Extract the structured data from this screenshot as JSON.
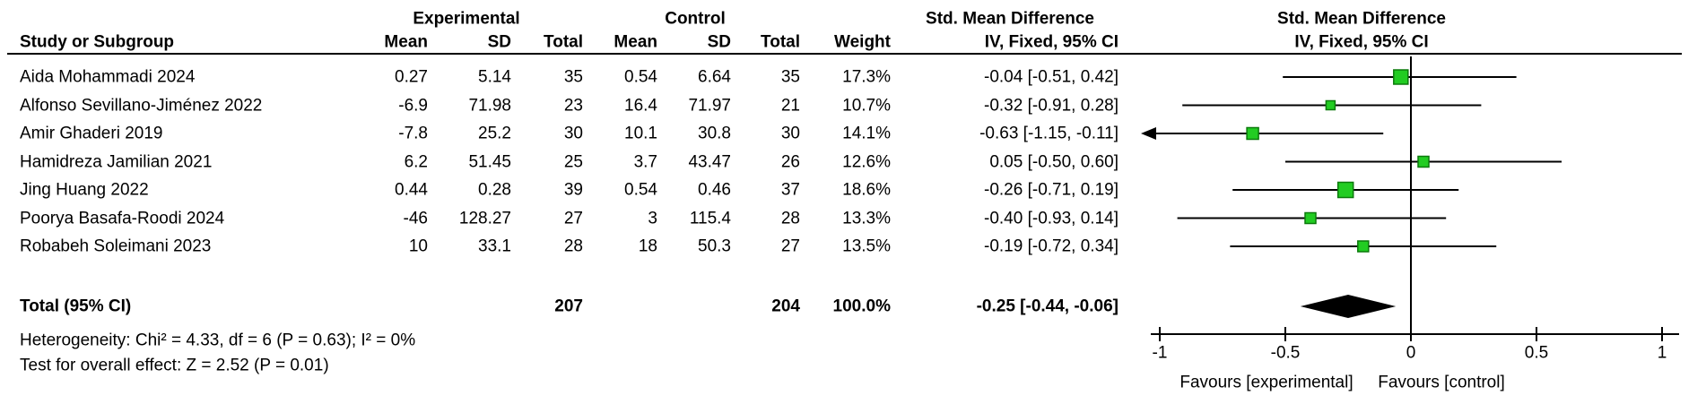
{
  "group_headers": {
    "experimental": "Experimental",
    "control": "Control",
    "smd": "Std. Mean Difference",
    "method_ci": "IV, Fixed, 95% CI"
  },
  "columns": {
    "study": "Study or Subgroup",
    "mean": "Mean",
    "sd": "SD",
    "total": "Total",
    "weight": "Weight"
  },
  "studies": [
    {
      "name": "Aida Mohammadi 2024",
      "mean_e": "0.27",
      "sd_e": "5.14",
      "n_e": "35",
      "mean_c": "0.54",
      "sd_c": "6.64",
      "n_c": "35",
      "weight": "17.3%",
      "ci": "-0.04 [-0.51, 0.42]",
      "est": -0.04,
      "lo": -0.51,
      "hi": 0.42,
      "weight_pct": 17.3
    },
    {
      "name": "Alfonso Sevillano-Jiménez 2022",
      "mean_e": "-6.9",
      "sd_e": "71.98",
      "n_e": "23",
      "mean_c": "16.4",
      "sd_c": "71.97",
      "n_c": "21",
      "weight": "10.7%",
      "ci": "-0.32 [-0.91, 0.28]",
      "est": -0.32,
      "lo": -0.91,
      "hi": 0.28,
      "weight_pct": 10.7
    },
    {
      "name": "Amir Ghaderi 2019",
      "mean_e": "-7.8",
      "sd_e": "25.2",
      "n_e": "30",
      "mean_c": "10.1",
      "sd_c": "30.8",
      "n_c": "30",
      "weight": "14.1%",
      "ci": "-0.63 [-1.15, -0.11]",
      "est": -0.63,
      "lo": -1.15,
      "hi": -0.11,
      "weight_pct": 14.1
    },
    {
      "name": "Hamidreza Jamilian 2021",
      "mean_e": "6.2",
      "sd_e": "51.45",
      "n_e": "25",
      "mean_c": "3.7",
      "sd_c": "43.47",
      "n_c": "26",
      "weight": "12.6%",
      "ci": "0.05 [-0.50, 0.60]",
      "est": 0.05,
      "lo": -0.5,
      "hi": 0.6,
      "weight_pct": 12.6
    },
    {
      "name": "Jing Huang 2022",
      "mean_e": "0.44",
      "sd_e": "0.28",
      "n_e": "39",
      "mean_c": "0.54",
      "sd_c": "0.46",
      "n_c": "37",
      "weight": "18.6%",
      "ci": "-0.26 [-0.71, 0.19]",
      "est": -0.26,
      "lo": -0.71,
      "hi": 0.19,
      "weight_pct": 18.6
    },
    {
      "name": "Poorya Basafa-Roodi 2024",
      "mean_e": "-46",
      "sd_e": "128.27",
      "n_e": "27",
      "mean_c": "3",
      "sd_c": "115.4",
      "n_c": "28",
      "weight": "13.3%",
      "ci": "-0.40 [-0.93, 0.14]",
      "est": -0.4,
      "lo": -0.93,
      "hi": 0.14,
      "weight_pct": 13.3
    },
    {
      "name": "Robabeh Soleimani 2023",
      "mean_e": "10",
      "sd_e": "33.1",
      "n_e": "28",
      "mean_c": "18",
      "sd_c": "50.3",
      "n_c": "27",
      "weight": "13.5%",
      "ci": "-0.19 [-0.72, 0.34]",
      "est": -0.19,
      "lo": -0.72,
      "hi": 0.34,
      "weight_pct": 13.5
    }
  ],
  "total": {
    "label": "Total (95% CI)",
    "n_e": "207",
    "n_c": "204",
    "weight": "100.0%",
    "ci": "-0.25 [-0.44, -0.06]",
    "est": -0.25,
    "lo": -0.44,
    "hi": -0.06
  },
  "footnotes": {
    "heterogeneity": "Heterogeneity: Chi² = 4.33, df = 6 (P = 0.63); I² = 0%",
    "overall": "Test for overall effect: Z = 2.52 (P = 0.01)"
  },
  "axis": {
    "ticks": [
      {
        "v": -1,
        "label": "-1"
      },
      {
        "v": -0.5,
        "label": "-0.5"
      },
      {
        "v": 0,
        "label": "0"
      },
      {
        "v": 0.5,
        "label": "0.5"
      },
      {
        "v": 1,
        "label": "1"
      }
    ],
    "favours_left": "Favours [experimental]",
    "favours_right": "Favours [control]"
  },
  "colors": {
    "marker_fill": "#22cc22",
    "marker_border": "#0b7a0b",
    "diamond": "#000000",
    "line": "#000000"
  },
  "chart_data": {
    "type": "scatter",
    "variant": "forest-plot-meta-analysis",
    "title": "Std. Mean Difference",
    "subtitle": "IV, Fixed, 95% CI",
    "xlim": [
      -1,
      1
    ],
    "x_ticks": [
      -1,
      -0.5,
      0,
      0.5,
      1
    ],
    "xlabel_left": "Favours [experimental]",
    "xlabel_right": "Favours [control]",
    "grid": false,
    "studies": [
      {
        "name": "Aida Mohammadi 2024",
        "est": -0.04,
        "ci": [
          -0.51,
          0.42
        ],
        "weight_pct": 17.3
      },
      {
        "name": "Alfonso Sevillano-Jiménez 2022",
        "est": -0.32,
        "ci": [
          -0.91,
          0.28
        ],
        "weight_pct": 10.7
      },
      {
        "name": "Amir Ghaderi 2019",
        "est": -0.63,
        "ci": [
          -1.15,
          -0.11
        ],
        "weight_pct": 14.1,
        "ci_clipped_left": true
      },
      {
        "name": "Hamidreza Jamilian 2021",
        "est": 0.05,
        "ci": [
          -0.5,
          0.6
        ],
        "weight_pct": 12.6
      },
      {
        "name": "Jing Huang 2022",
        "est": -0.26,
        "ci": [
          -0.71,
          0.19
        ],
        "weight_pct": 18.6
      },
      {
        "name": "Poorya Basafa-Roodi 2024",
        "est": -0.4,
        "ci": [
          -0.93,
          0.14
        ],
        "weight_pct": 13.3
      },
      {
        "name": "Robabeh Soleimani 2023",
        "est": -0.19,
        "ci": [
          -0.72,
          0.34
        ],
        "weight_pct": 13.5
      }
    ],
    "total": {
      "label": "Total (95% CI)",
      "est": -0.25,
      "ci": [
        -0.44,
        -0.06
      ],
      "n_experimental": 207,
      "n_control": 204,
      "weight_pct": 100.0
    },
    "heterogeneity": "Chi² = 4.33, df = 6 (P = 0.63); I² = 0%",
    "overall_effect": "Z = 2.52 (P = 0.01)"
  }
}
